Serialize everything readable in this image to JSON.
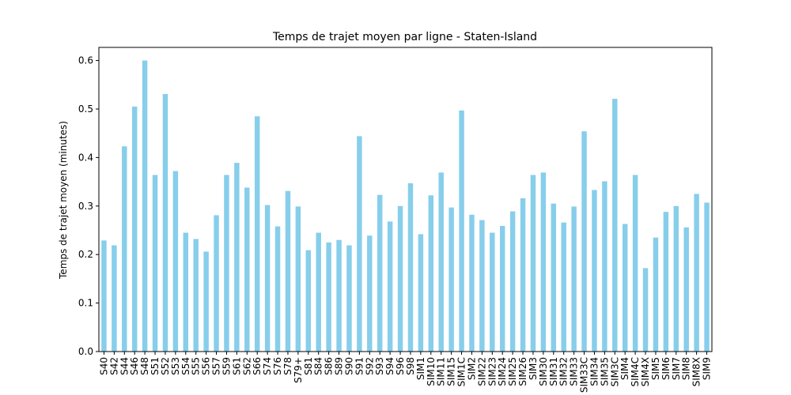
{
  "chart_data": {
    "type": "bar",
    "title": "Temps de trajet moyen par ligne - Staten-Island",
    "xlabel": "",
    "ylabel": "Temps de trajet moyen (minutes)",
    "ylim": [
      0,
      0.627
    ],
    "yticks": [
      "0.0",
      "0.1",
      "0.2",
      "0.3",
      "0.4",
      "0.5",
      "0.6"
    ],
    "grid": false,
    "bar_color": "#87ceeb",
    "categories": [
      "S40",
      "S42",
      "S44",
      "S46",
      "S48",
      "S51",
      "S52",
      "S53",
      "S54",
      "S55",
      "S56",
      "S57",
      "S59",
      "S61",
      "S62",
      "S66",
      "S74",
      "S76",
      "S78",
      "S79+",
      "S81",
      "S84",
      "S86",
      "S89",
      "S90",
      "S91",
      "S92",
      "S93",
      "S94",
      "S96",
      "S98",
      "SIM1",
      "SIM10",
      "SIM11",
      "SIM15",
      "SIM1C",
      "SIM2",
      "SIM22",
      "SIM23",
      "SIM24",
      "SIM25",
      "SIM26",
      "SIM3",
      "SIM30",
      "SIM31",
      "SIM32",
      "SIM33",
      "SIM33C",
      "SIM34",
      "SIM35",
      "SIM3C",
      "SIM4",
      "SIM4C",
      "SIM4X",
      "SIM5",
      "SIM6",
      "SIM7",
      "SIM8",
      "SIM8X",
      "SIM9"
    ],
    "values": [
      0.229,
      0.219,
      0.423,
      0.505,
      0.6,
      0.364,
      0.531,
      0.372,
      0.245,
      0.232,
      0.206,
      0.281,
      0.364,
      0.389,
      0.338,
      0.485,
      0.302,
      0.258,
      0.331,
      0.299,
      0.209,
      0.245,
      0.225,
      0.23,
      0.219,
      0.444,
      0.239,
      0.323,
      0.268,
      0.3,
      0.347,
      0.242,
      0.322,
      0.369,
      0.297,
      0.497,
      0.282,
      0.271,
      0.245,
      0.259,
      0.289,
      0.316,
      0.364,
      0.369,
      0.305,
      0.266,
      0.299,
      0.454,
      0.333,
      0.351,
      0.521,
      0.263,
      0.364,
      0.172,
      0.235,
      0.288,
      0.3,
      0.256,
      0.325,
      0.307
    ]
  }
}
